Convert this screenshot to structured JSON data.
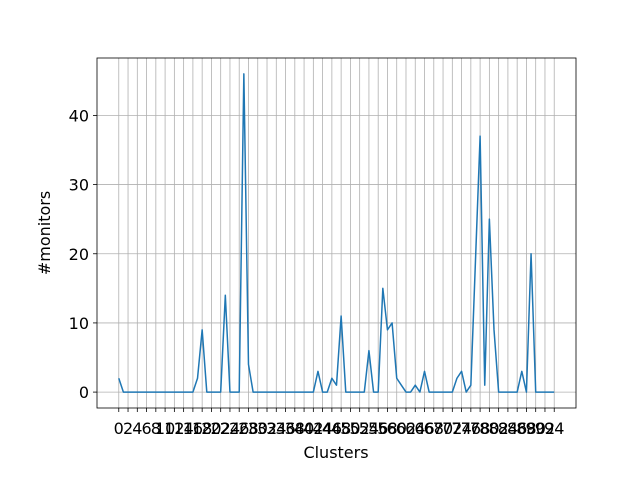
{
  "chart_data": {
    "type": "line",
    "x_label": "Clusters",
    "y_label": "#monitors",
    "x": [
      0,
      1,
      2,
      3,
      4,
      5,
      6,
      7,
      8,
      9,
      10,
      11,
      12,
      13,
      14,
      15,
      16,
      17,
      18,
      19,
      20,
      21,
      22,
      23,
      24,
      25,
      26,
      27,
      28,
      29,
      30,
      31,
      32,
      33,
      34,
      35,
      36,
      37,
      38,
      39,
      40,
      41,
      42,
      43,
      44,
      45,
      46,
      47,
      48,
      49,
      50,
      51,
      52,
      53,
      54,
      55,
      56,
      57,
      58,
      59,
      60,
      61,
      62,
      63,
      64,
      65,
      66,
      67,
      68,
      69,
      70,
      71,
      72,
      73,
      74,
      75,
      76,
      77,
      78,
      79,
      80,
      81,
      82,
      83,
      84,
      85,
      86,
      87,
      88,
      89,
      90,
      91,
      92,
      93,
      94
    ],
    "series": [
      {
        "color": "#1f77b4",
        "values": [
          2,
          0,
          0,
          0,
          0,
          0,
          0,
          0,
          0,
          0,
          0,
          0,
          0,
          0,
          0,
          0,
          0,
          2,
          9,
          0,
          0,
          0,
          0,
          14,
          0,
          0,
          0,
          46,
          4,
          0,
          0,
          0,
          0,
          0,
          0,
          0,
          0,
          0,
          0,
          0,
          0,
          0,
          0,
          3,
          0,
          0,
          2,
          1,
          11,
          0,
          0,
          0,
          0,
          0,
          6,
          0,
          0,
          15,
          9,
          10,
          2,
          1,
          0,
          0,
          1,
          0,
          3,
          0,
          0,
          0,
          0,
          0,
          0,
          2,
          3,
          0,
          1,
          19,
          37,
          1,
          25,
          9,
          0,
          0,
          0,
          0,
          0,
          3,
          0,
          20,
          0,
          0,
          0,
          0,
          0
        ]
      }
    ],
    "xlim": [
      -4.7,
      98.7
    ],
    "ylim": [
      -2.3,
      48.3
    ],
    "xticks": [
      0,
      2,
      4,
      6,
      8,
      10,
      12,
      14,
      16,
      18,
      20,
      22,
      24,
      26,
      28,
      30,
      32,
      34,
      36,
      38,
      40,
      42,
      44,
      46,
      48,
      50,
      52,
      54,
      56,
      58,
      60,
      62,
      64,
      66,
      68,
      70,
      72,
      74,
      76,
      78,
      80,
      82,
      84,
      86,
      88,
      90,
      92,
      94
    ],
    "yticks": [
      0,
      10,
      20,
      30,
      40
    ],
    "grid": true
  }
}
